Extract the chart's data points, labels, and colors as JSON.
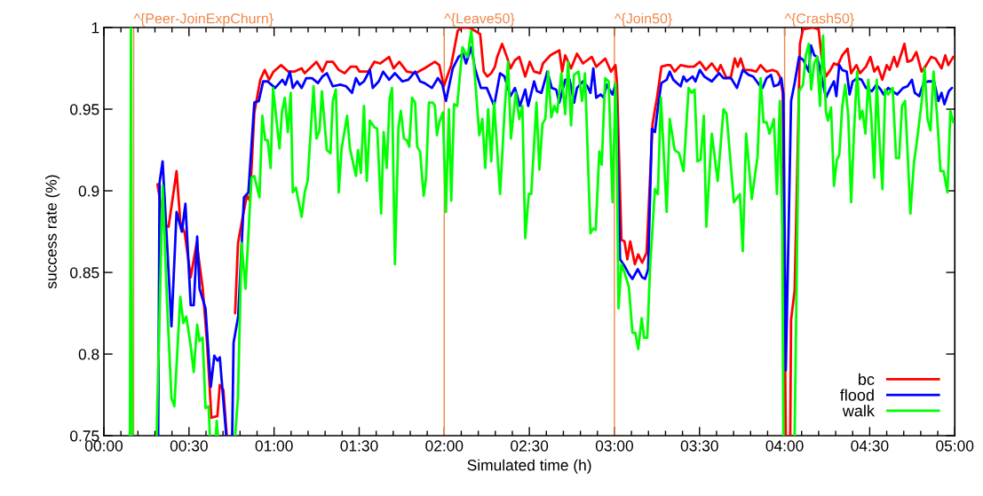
{
  "chart_data": {
    "type": "line",
    "xlabel": "Simulated time (h)",
    "ylabel": "success rate (%)",
    "xlim": [
      0,
      5
    ],
    "ylim": [
      0.75,
      1
    ],
    "xticks": [
      {
        "value": 0,
        "label": "00:00"
      },
      {
        "value": 0.1,
        "label": null
      },
      {
        "value": 0.2,
        "label": null
      },
      {
        "value": 0.3,
        "label": null
      },
      {
        "value": 0.4,
        "label": null
      },
      {
        "value": 0.5,
        "label": "00:30"
      },
      {
        "value": 0.6,
        "label": null
      },
      {
        "value": 0.7,
        "label": null
      },
      {
        "value": 0.8,
        "label": null
      },
      {
        "value": 0.9,
        "label": null
      },
      {
        "value": 1,
        "label": "01:00"
      },
      {
        "value": 1.1,
        "label": null
      },
      {
        "value": 1.2,
        "label": null
      },
      {
        "value": 1.3,
        "label": null
      },
      {
        "value": 1.4,
        "label": null
      },
      {
        "value": 1.5,
        "label": "01:30"
      },
      {
        "value": 1.6,
        "label": null
      },
      {
        "value": 1.7,
        "label": null
      },
      {
        "value": 1.8,
        "label": null
      },
      {
        "value": 1.9,
        "label": null
      },
      {
        "value": 2,
        "label": "02:00"
      },
      {
        "value": 2.1,
        "label": null
      },
      {
        "value": 2.2,
        "label": null
      },
      {
        "value": 2.3,
        "label": null
      },
      {
        "value": 2.4,
        "label": null
      },
      {
        "value": 2.5,
        "label": "02:30"
      },
      {
        "value": 2.6,
        "label": null
      },
      {
        "value": 2.7,
        "label": null
      },
      {
        "value": 2.8,
        "label": null
      },
      {
        "value": 2.9,
        "label": null
      },
      {
        "value": 3,
        "label": "03:00"
      },
      {
        "value": 3.1,
        "label": null
      },
      {
        "value": 3.2,
        "label": null
      },
      {
        "value": 3.3,
        "label": null
      },
      {
        "value": 3.4,
        "label": null
      },
      {
        "value": 3.5,
        "label": "03:30"
      },
      {
        "value": 3.6,
        "label": null
      },
      {
        "value": 3.7,
        "label": null
      },
      {
        "value": 3.8,
        "label": null
      },
      {
        "value": 3.9,
        "label": null
      },
      {
        "value": 4,
        "label": "04:00"
      },
      {
        "value": 4.1,
        "label": null
      },
      {
        "value": 4.2,
        "label": null
      },
      {
        "value": 4.3,
        "label": null
      },
      {
        "value": 4.4,
        "label": null
      },
      {
        "value": 4.5,
        "label": "04:30"
      },
      {
        "value": 4.6,
        "label": null
      },
      {
        "value": 4.7,
        "label": null
      },
      {
        "value": 4.8,
        "label": null
      },
      {
        "value": 4.9,
        "label": null
      },
      {
        "value": 5,
        "label": "05:00"
      }
    ],
    "yticks": [
      0.75,
      0.8,
      0.85,
      0.9,
      0.95,
      1
    ],
    "grid": false,
    "legend": "bottom right",
    "marker": "none",
    "line_style": "solid",
    "ref_lines": [
      {
        "axis": "x",
        "value": 0.175,
        "label": "^{Peer-JoinExpChurn}",
        "color": "#f0874a"
      },
      {
        "axis": "x",
        "value": 2,
        "label": "^{Leave50}",
        "color": "#f0874a"
      },
      {
        "axis": "x",
        "value": 3,
        "label": "^{Join50}",
        "color": "#f0874a"
      },
      {
        "axis": "x",
        "value": 4,
        "label": "^{Crash50}",
        "color": "#f0874a"
      }
    ],
    "series": [
      {
        "name": "bc",
        "color": "#ff0000",
        "x": [
          0.315,
          0.353,
          0.38,
          0.427,
          0.449,
          0.475,
          0.51,
          0.545,
          0.58,
          0.606,
          0.632,
          0.667,
          0.681,
          0.702,
          0.722,
          0.74,
          0.771,
          0.788,
          0.814,
          0.84,
          0.858,
          0.884,
          0.919,
          0.945,
          0.971,
          0.997,
          1.041,
          1.084,
          1.119,
          1.162,
          1.18,
          1.249,
          1.284,
          1.31,
          1.345,
          1.38,
          1.415,
          1.45,
          1.484,
          1.502,
          1.554,
          1.589,
          1.623,
          1.676,
          1.702,
          1.736,
          1.78,
          1.832,
          1.884,
          1.945,
          1.971,
          1.997,
          2.041,
          2.079,
          2.102,
          2.145,
          2.18,
          2.211,
          2.232,
          2.253,
          2.276,
          2.298,
          2.311,
          2.34,
          2.368,
          2.389,
          2.415,
          2.441,
          2.476,
          2.502,
          2.528,
          2.563,
          2.58,
          2.624,
          2.676,
          2.693,
          2.711,
          2.745,
          2.78,
          2.815,
          2.867,
          2.893,
          2.946,
          2.98,
          3.006,
          3.015,
          3.041,
          3.059,
          3.076,
          3.093,
          3.12,
          3.14,
          3.163,
          3.189,
          3.224,
          3.25,
          3.276,
          3.311,
          3.328,
          3.354,
          3.389,
          3.432,
          3.467,
          3.502,
          3.537,
          3.572,
          3.607,
          3.624,
          3.659,
          3.685,
          3.707,
          3.725,
          3.742,
          3.763,
          3.798,
          3.833,
          3.859,
          3.894,
          3.928,
          3.955,
          3.972,
          3.989,
          4.007,
          4.02,
          4.033,
          4.038,
          4.059,
          4.076,
          4.09,
          4.108,
          4.163,
          4.2,
          4.217,
          4.243,
          4.269,
          4.29,
          4.313,
          4.339,
          4.37,
          4.391,
          4.422,
          4.443,
          4.478,
          4.504,
          4.527,
          4.548,
          4.574,
          4.6,
          4.617,
          4.643,
          4.661,
          4.683,
          4.704,
          4.722,
          4.748,
          4.774,
          4.805,
          4.826,
          4.861,
          4.887,
          4.904,
          4.922,
          4.944,
          4.962,
          4.991
        ],
        "values": [
          0.904,
          0.879,
          0.878,
          0.912,
          0.881,
          0.874,
          0.847,
          0.868,
          0.841,
          0.807,
          0.761,
          0.762,
          0.781,
          0.778,
          0.75,
          null,
          0.825,
          0.868,
          0.883,
          0.897,
          0.894,
          0.948,
          0.968,
          0.974,
          0.968,
          0.973,
          0.977,
          0.973,
          0.973,
          0.975,
          0.972,
          0.979,
          0.973,
          0.979,
          0.979,
          0.974,
          0.972,
          0.976,
          0.976,
          0.973,
          0.973,
          0.979,
          0.978,
          0.982,
          0.975,
          0.979,
          0.973,
          0.972,
          0.975,
          0.979,
          0.977,
          0.964,
          0.977,
          0.998,
          1.0,
          1.0,
          0.998,
          0.996,
          0.973,
          0.97,
          0.972,
          0.976,
          0.982,
          0.99,
          0.982,
          0.975,
          0.98,
          0.982,
          0.97,
          0.979,
          0.973,
          0.972,
          0.978,
          0.983,
          0.986,
          0.973,
          0.983,
          0.975,
          0.984,
          0.978,
          0.982,
          0.976,
          0.981,
          0.973,
          0.977,
          0.966,
          0.87,
          0.869,
          0.858,
          0.869,
          0.855,
          0.861,
          0.856,
          0.862,
          0.941,
          0.957,
          0.976,
          0.977,
          0.977,
          0.973,
          0.977,
          0.976,
          0.976,
          0.979,
          0.974,
          0.978,
          0.973,
          0.977,
          0.969,
          0.97,
          0.981,
          0.976,
          0.981,
          0.974,
          0.974,
          0.973,
          0.977,
          0.973,
          0.974,
          0.973,
          0.97,
          0.96,
          0.75,
          null,
          0.75,
          0.821,
          0.839,
          0.921,
          0.99,
          0.999,
          1.0,
          0.999,
          0.982,
          0.97,
          0.974,
          0.978,
          0.977,
          0.983,
          0.987,
          0.972,
          0.977,
          0.972,
          0.976,
          0.982,
          0.973,
          0.976,
          0.968,
          0.977,
          0.974,
          0.982,
          0.976,
          0.983,
          0.99,
          0.979,
          0.98,
          0.985,
          0.973,
          0.976,
          0.982,
          0.981,
          0.978,
          0.975,
          0.983,
          0.977,
          0.982
        ]
      },
      {
        "name": "flood",
        "color": "#0000ff",
        "x": [
          0.319,
          0.327,
          0.345,
          0.371,
          0.397,
          0.427,
          0.458,
          0.479,
          0.51,
          0.528,
          0.548,
          0.562,
          0.597,
          0.628,
          0.649,
          0.667,
          0.681,
          0.719,
          0.737,
          0.754,
          0.762,
          0.789,
          0.823,
          0.849,
          0.884,
          0.91,
          0.936,
          0.962,
          1.006,
          1.049,
          1.067,
          1.093,
          1.11,
          1.136,
          1.162,
          1.189,
          1.223,
          1.258,
          1.284,
          1.31,
          1.345,
          1.389,
          1.423,
          1.458,
          1.481,
          1.502,
          1.528,
          1.563,
          1.58,
          1.615,
          1.641,
          1.676,
          1.71,
          1.754,
          1.789,
          1.829,
          1.858,
          1.884,
          1.928,
          1.963,
          1.989,
          2.01,
          2.05,
          2.084,
          2.11,
          2.128,
          2.159,
          2.18,
          2.215,
          2.25,
          2.293,
          2.328,
          2.354,
          2.389,
          2.415,
          2.445,
          2.476,
          2.493,
          2.528,
          2.545,
          2.571,
          2.606,
          2.632,
          2.658,
          2.676,
          2.711,
          2.737,
          2.763,
          2.78,
          2.815,
          2.841,
          2.859,
          2.876,
          2.893,
          2.919,
          2.937,
          2.954,
          2.989,
          3.006,
          3.015,
          3.033,
          3.059,
          3.085,
          3.106,
          3.137,
          3.163,
          3.18,
          3.198,
          3.22,
          3.238,
          3.259,
          3.276,
          3.307,
          3.325,
          3.346,
          3.389,
          3.406,
          3.424,
          3.459,
          3.476,
          3.502,
          3.528,
          3.572,
          3.615,
          3.641,
          3.685,
          3.72,
          3.754,
          3.789,
          3.815,
          3.85,
          3.871,
          3.894,
          3.92,
          3.937,
          3.963,
          3.981,
          3.993,
          4.007,
          4.024,
          4.038,
          4.059,
          4.085,
          4.111,
          4.142,
          4.155,
          4.174,
          4.191,
          4.217,
          4.243,
          4.269,
          4.29,
          4.304,
          4.321,
          4.339,
          4.365,
          4.382,
          4.4,
          4.426,
          4.452,
          4.478,
          4.513,
          4.539,
          4.565,
          4.582,
          4.609,
          4.635,
          4.661,
          4.696,
          4.722,
          4.748,
          4.765,
          4.791,
          4.817,
          4.843,
          4.878,
          4.904,
          4.922,
          4.939,
          4.965,
          4.983
        ],
        "values": [
          0.75,
          0.905,
          0.918,
          0.868,
          0.817,
          0.887,
          0.875,
          0.892,
          0.83,
          0.83,
          0.872,
          0.84,
          0.828,
          0.78,
          0.799,
          0.796,
          0.798,
          0.75,
          null,
          0.75,
          0.807,
          0.823,
          0.896,
          0.899,
          0.954,
          0.955,
          0.967,
          0.967,
          0.963,
          0.968,
          0.965,
          0.973,
          0.963,
          0.967,
          0.963,
          0.969,
          0.969,
          0.966,
          0.97,
          0.972,
          0.964,
          0.965,
          0.964,
          0.96,
          0.969,
          0.965,
          0.967,
          0.974,
          0.963,
          0.967,
          0.973,
          0.968,
          0.972,
          0.967,
          0.968,
          0.973,
          0.967,
          0.966,
          0.963,
          0.969,
          0.965,
          0.955,
          0.975,
          0.982,
          0.984,
          0.978,
          0.988,
          0.975,
          0.963,
          0.963,
          0.952,
          0.972,
          0.97,
          0.958,
          0.963,
          0.952,
          0.962,
          0.952,
          0.967,
          0.961,
          0.96,
          0.973,
          0.963,
          0.962,
          0.954,
          0.968,
          0.968,
          0.954,
          0.963,
          0.967,
          0.964,
          0.96,
          0.975,
          0.957,
          0.959,
          0.957,
          0.965,
          0.959,
          0.965,
          0.944,
          0.858,
          0.854,
          0.849,
          0.846,
          0.852,
          0.847,
          0.846,
          0.852,
          0.938,
          0.936,
          0.954,
          0.966,
          0.968,
          0.973,
          0.968,
          0.964,
          0.97,
          0.967,
          0.97,
          0.967,
          0.974,
          0.97,
          0.967,
          0.972,
          0.969,
          0.969,
          0.963,
          0.974,
          0.971,
          0.97,
          0.965,
          0.963,
          0.969,
          0.971,
          0.964,
          0.965,
          0.969,
          0.959,
          0.79,
          0.879,
          0.955,
          0.966,
          0.982,
          0.98,
          0.973,
          0.989,
          0.983,
          0.982,
          0.97,
          0.957,
          0.963,
          0.967,
          0.958,
          0.977,
          0.974,
          0.973,
          0.959,
          0.967,
          0.969,
          0.968,
          0.963,
          0.961,
          0.965,
          0.962,
          0.959,
          0.963,
          0.961,
          0.959,
          0.963,
          0.964,
          0.968,
          0.96,
          0.958,
          0.966,
          0.967,
          0.967,
          0.955,
          0.96,
          0.953,
          0.961,
          0.963
        ]
      },
      {
        "name": "walk",
        "color": "#00ff00",
        "x": [
          0.153,
          0.159,
          0.166,
          0.24,
          0.31,
          0.345,
          0.371,
          0.397,
          0.414,
          0.449,
          0.467,
          0.484,
          0.51,
          0.528,
          0.548,
          0.562,
          0.58,
          0.597,
          0.615,
          0.623,
          0.64,
          0.658,
          0.663,
          0.67,
          0.72,
          0.771,
          0.788,
          0.809,
          0.832,
          0.867,
          0.884,
          0.914,
          0.931,
          0.948,
          0.962,
          0.98,
          0.994,
          1.032,
          1.046,
          1.063,
          1.081,
          1.098,
          1.11,
          1.128,
          1.162,
          1.18,
          1.197,
          1.232,
          1.249,
          1.267,
          1.281,
          1.31,
          1.331,
          1.345,
          1.363,
          1.38,
          1.397,
          1.429,
          1.446,
          1.481,
          1.493,
          1.51,
          1.528,
          1.545,
          1.563,
          1.589,
          1.606,
          1.629,
          1.644,
          1.662,
          1.679,
          1.693,
          1.71,
          1.731,
          1.745,
          1.763,
          1.78,
          1.794,
          1.811,
          1.829,
          1.841,
          1.858,
          1.879,
          1.893,
          1.91,
          1.933,
          1.945,
          1.957,
          1.971,
          1.992,
          2.01,
          2.027,
          2.041,
          2.058,
          2.076,
          2.107,
          2.137,
          2.159,
          2.18,
          2.206,
          2.224,
          2.241,
          2.258,
          2.276,
          2.293,
          2.328,
          2.354,
          2.375,
          2.392,
          2.42,
          2.441,
          2.459,
          2.476,
          2.497,
          2.511,
          2.542,
          2.559,
          2.577,
          2.594,
          2.611,
          2.629,
          2.646,
          2.664,
          2.688,
          2.711,
          2.728,
          2.745,
          2.763,
          2.789,
          2.81,
          2.827,
          2.859,
          2.876,
          2.89,
          2.911,
          2.925,
          2.946,
          2.966,
          2.989,
          3.006,
          3.012,
          3.024,
          3.041,
          3.059,
          3.085,
          3.106,
          3.123,
          3.14,
          3.16,
          3.175,
          3.193,
          3.21,
          3.238,
          3.255,
          3.273,
          3.307,
          3.325,
          3.354,
          3.38,
          3.406,
          3.436,
          3.453,
          3.471,
          3.488,
          3.506,
          3.525,
          3.54,
          3.572,
          3.607,
          3.641,
          3.659,
          3.702,
          3.737,
          3.754,
          3.774,
          3.807,
          3.841,
          3.859,
          3.876,
          3.894,
          3.911,
          3.937,
          3.955,
          3.972,
          3.986,
          3.993,
          4.025,
          4.059,
          4.085,
          4.108,
          4.125,
          4.142,
          4.156,
          4.174,
          4.191,
          4.208,
          4.226,
          4.243,
          4.255,
          4.273,
          4.29,
          4.307,
          4.321,
          4.339,
          4.356,
          4.374,
          4.391,
          4.408,
          4.426,
          4.443,
          4.457,
          4.475,
          4.492,
          4.509,
          4.527,
          4.541,
          4.558,
          4.575,
          4.591,
          4.609,
          4.635,
          4.655,
          4.673,
          4.69,
          4.708,
          4.722,
          4.739,
          4.76,
          4.777,
          4.805,
          4.823,
          4.84,
          4.857,
          4.875,
          4.896,
          4.916,
          4.934,
          4.957,
          4.974,
          4.991
        ],
        "values": [
          0.75,
          1.0,
          0.75,
          null,
          0.75,
          0.903,
          0.832,
          0.773,
          0.768,
          0.835,
          0.819,
          0.823,
          0.805,
          0.789,
          0.818,
          0.808,
          0.81,
          0.767,
          0.768,
          0.75,
          null,
          0.75,
          0.759,
          0.75,
          null,
          0.75,
          0.774,
          0.868,
          0.84,
          0.908,
          0.909,
          0.896,
          0.946,
          0.931,
          0.931,
          0.914,
          0.963,
          0.926,
          0.948,
          0.957,
          0.936,
          0.96,
          0.899,
          0.902,
          0.884,
          0.899,
          0.906,
          0.964,
          0.932,
          0.937,
          0.961,
          0.925,
          0.923,
          0.955,
          0.962,
          0.899,
          0.926,
          0.946,
          0.926,
          0.909,
          0.925,
          0.911,
          0.952,
          0.906,
          0.943,
          0.939,
          0.938,
          0.886,
          0.936,
          0.914,
          0.956,
          0.963,
          0.855,
          0.939,
          0.949,
          0.932,
          0.931,
          0.927,
          0.957,
          0.954,
          0.927,
          0.924,
          0.897,
          0.908,
          0.954,
          0.954,
          0.952,
          0.934,
          0.942,
          0.948,
          0.887,
          0.95,
          0.894,
          0.953,
          0.952,
          0.988,
          0.982,
          0.998,
          0.97,
          0.934,
          0.944,
          0.914,
          0.95,
          0.918,
          0.954,
          0.898,
          0.948,
          0.979,
          0.932,
          0.96,
          0.944,
          0.952,
          0.871,
          0.898,
          0.898,
          0.954,
          0.913,
          0.941,
          0.944,
          0.973,
          0.945,
          0.952,
          0.948,
          0.972,
          0.947,
          0.979,
          0.94,
          0.971,
          0.973,
          0.955,
          0.972,
          0.874,
          0.877,
          0.876,
          0.924,
          0.916,
          0.969,
          0.967,
          0.893,
          0.966,
          0.944,
          0.828,
          0.855,
          0.85,
          0.841,
          0.813,
          0.813,
          0.803,
          0.822,
          0.81,
          0.81,
          0.854,
          0.901,
          0.898,
          0.957,
          0.887,
          0.944,
          0.925,
          0.923,
          0.912,
          0.963,
          0.96,
          0.962,
          0.918,
          0.919,
          0.946,
          0.878,
          0.935,
          0.906,
          0.95,
          0.947,
          0.893,
          0.898,
          0.863,
          0.935,
          0.895,
          0.921,
          0.969,
          0.942,
          0.942,
          0.935,
          0.944,
          0.898,
          0.955,
          0.879,
          0.75,
          null,
          0.75,
          0.961,
          0.965,
          0.983,
          0.99,
          0.962,
          0.978,
          0.982,
          0.952,
          0.995,
          0.948,
          0.943,
          0.951,
          0.903,
          0.919,
          0.922,
          0.952,
          0.965,
          0.946,
          0.893,
          0.937,
          0.973,
          0.944,
          0.949,
          0.935,
          0.968,
          0.946,
          0.908,
          0.968,
          0.93,
          0.901,
          0.962,
          0.959,
          0.963,
          0.92,
          0.92,
          0.952,
          0.955,
          0.925,
          0.886,
          0.917,
          0.93,
          0.954,
          0.975,
          0.944,
          0.937,
          0.973,
          0.946,
          0.912,
          0.912,
          0.899,
          0.949,
          0.942
        ]
      }
    ]
  }
}
